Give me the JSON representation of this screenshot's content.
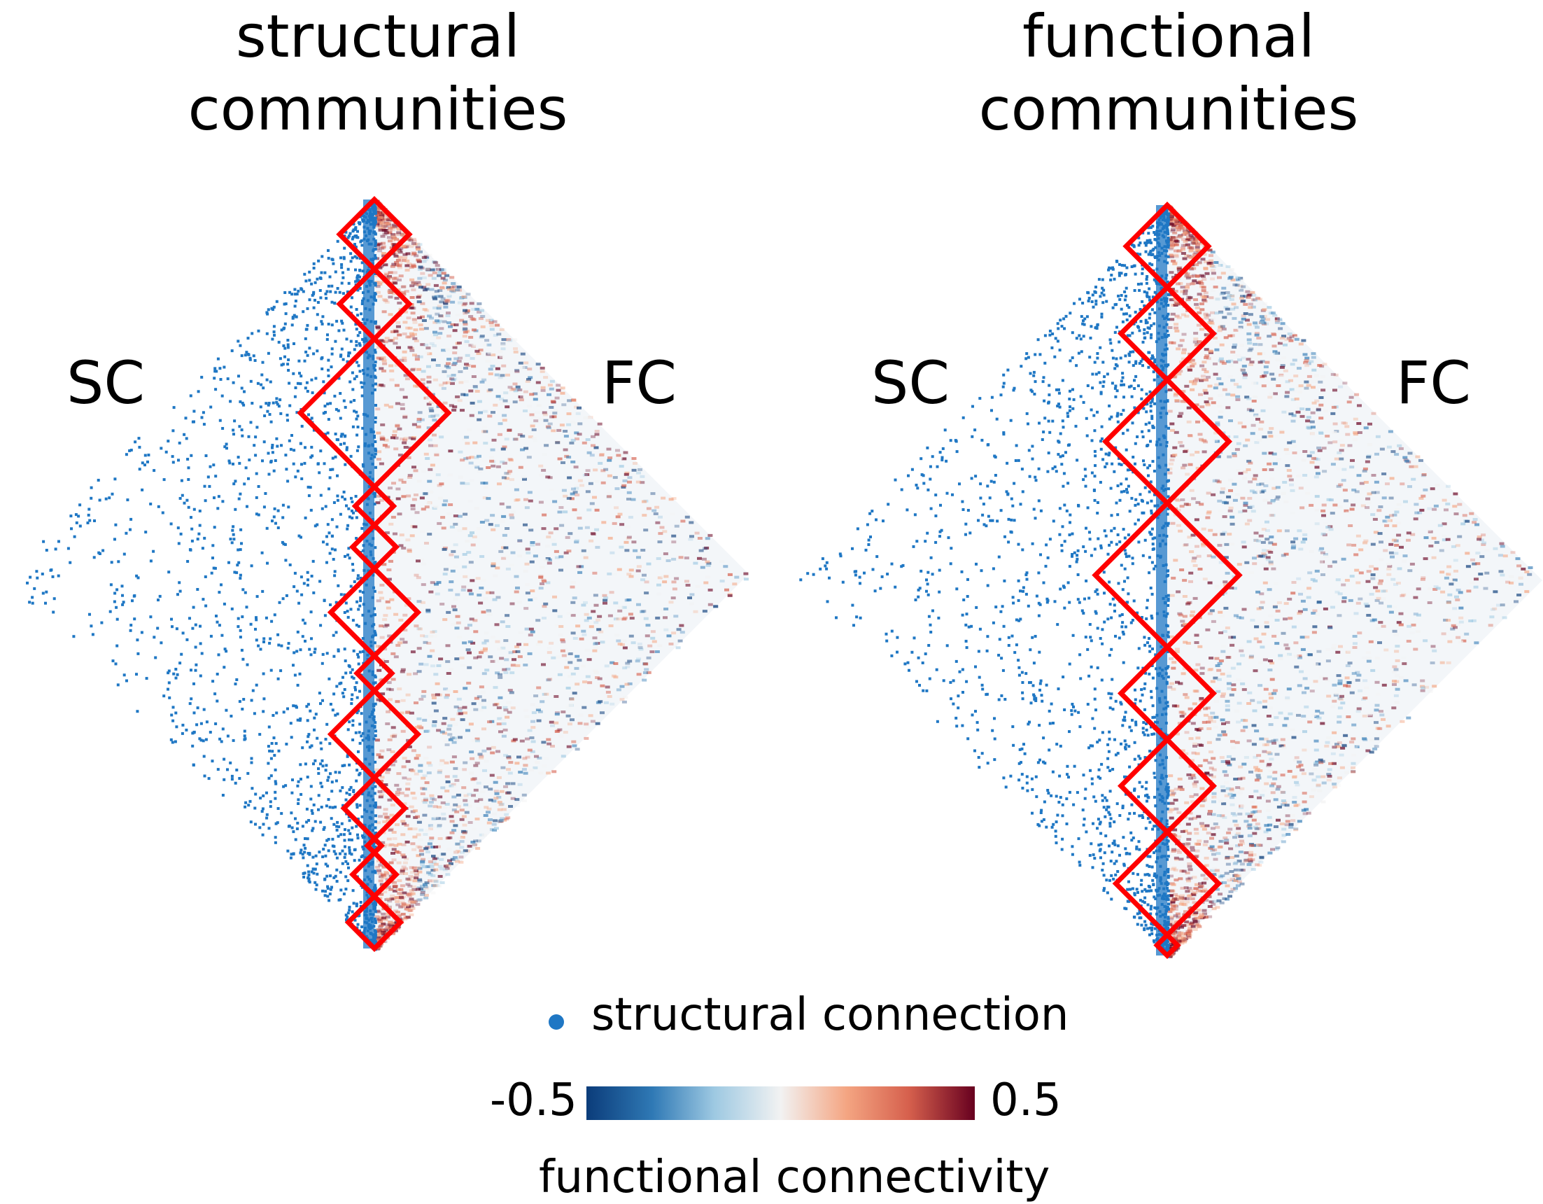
{
  "panels": [
    {
      "title": "structural\ncommunities",
      "left_label": "SC",
      "right_label": "FC",
      "communities": [
        0.04,
        0.04,
        0.085,
        0.022,
        0.025,
        0.05,
        0.02,
        0.05,
        0.035,
        0.008,
        0.025,
        0.03
      ]
    },
    {
      "title": "functional\ncommunities",
      "left_label": "SC",
      "right_label": "FC",
      "communities": [
        0.04,
        0.045,
        0.06,
        0.07,
        0.045,
        0.045,
        0.05,
        0.01
      ]
    }
  ],
  "legend": {
    "marker_label": "structural connection",
    "colorbar_min": "-0.5",
    "colorbar_max": "0.5",
    "colorbar_label": "functional connectivity"
  },
  "colors": {
    "structural": "#1f77c4",
    "community_outline": "#ff0000",
    "colormap": [
      "#0b3c7a",
      "#2f79b5",
      "#9ec9e2",
      "#f2f2f2",
      "#f4a582",
      "#d6604d",
      "#67001f"
    ]
  }
}
